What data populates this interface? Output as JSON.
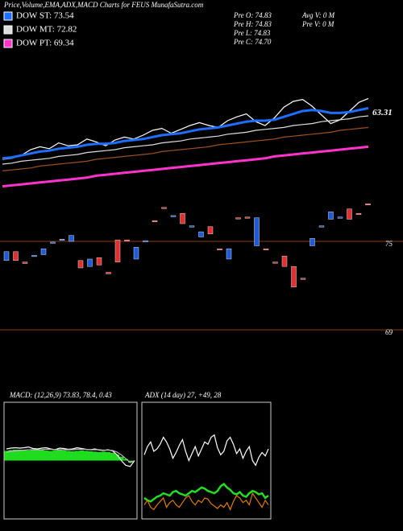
{
  "chart_data": [
    {
      "type": "line",
      "title": "Price,Volume,EMA,ADX,MACD Charts for FEUS MunafaSutra.com",
      "annotations": [
        "Pre O: 74.83",
        "Pre H: 74.83",
        "Pre L: 74.83",
        "Pre C: 74.70",
        "Avg V: 0 M",
        "Pre V: 0 M"
      ],
      "ylim": [
        55,
        70
      ],
      "yticks": [
        63.31
      ],
      "series": [
        {
          "color": "#ffffff",
          "values": [
            58.5,
            58.6,
            58.9,
            59.5,
            59.8,
            59.6,
            60.2,
            59.9,
            60.0,
            60.6,
            60.3,
            59.9,
            60.5,
            60.8,
            60.6,
            61.0,
            61.5,
            61.7,
            61.2,
            61.6,
            62.0,
            62.3,
            62.0,
            61.8,
            62.5,
            62.9,
            63.2,
            62.4,
            62.0,
            62.8,
            63.9,
            64.5,
            64.7,
            64.0,
            63.1,
            62.2,
            62.6,
            63.5,
            64.4,
            64.8
          ]
        },
        {
          "name": "DOW ST: 73.54",
          "color": "#1e6fff",
          "values": [
            58.6,
            58.7,
            58.9,
            59.1,
            59.3,
            59.4,
            59.6,
            59.7,
            59.8,
            60.0,
            60.1,
            60.1,
            60.2,
            60.4,
            60.5,
            60.6,
            60.8,
            61.0,
            61.1,
            61.2,
            61.4,
            61.6,
            61.7,
            61.8,
            62.0,
            62.2,
            62.4,
            62.5,
            62.5,
            62.6,
            62.9,
            63.2,
            63.5,
            63.6,
            63.5,
            63.3,
            63.3,
            63.4,
            63.6,
            63.8
          ]
        },
        {
          "name": "DOW MT: 72.82",
          "color": "#dddddd",
          "values": [
            58.0,
            58.1,
            58.3,
            58.4,
            58.5,
            58.6,
            58.8,
            58.9,
            59.0,
            59.2,
            59.3,
            59.4,
            59.5,
            59.7,
            59.8,
            59.9,
            60.0,
            60.2,
            60.3,
            60.4,
            60.6,
            60.7,
            60.8,
            60.9,
            61.1,
            61.2,
            61.3,
            61.5,
            61.6,
            61.7,
            61.8,
            62.0,
            62.1,
            62.2,
            62.4,
            62.5,
            62.6,
            62.7,
            62.9,
            63.0
          ]
        },
        {
          "color": "#a0521e",
          "values": [
            57.3,
            57.4,
            57.5,
            57.6,
            57.8,
            57.9,
            58.0,
            58.1,
            58.2,
            58.3,
            58.5,
            58.6,
            58.7,
            58.8,
            58.9,
            59.0,
            59.1,
            59.3,
            59.4,
            59.5,
            59.6,
            59.7,
            59.8,
            60.0,
            60.1,
            60.2,
            60.3,
            60.4,
            60.5,
            60.6,
            60.8,
            60.9,
            61.0,
            61.1,
            61.2,
            61.3,
            61.5,
            61.6,
            61.7,
            61.8
          ]
        },
        {
          "name": "DOW PT: 69.34",
          "color": "#ff33cc",
          "values": [
            55.7,
            55.8,
            55.9,
            56.0,
            56.1,
            56.2,
            56.3,
            56.4,
            56.5,
            56.6,
            56.8,
            56.9,
            57.0,
            57.1,
            57.2,
            57.3,
            57.4,
            57.5,
            57.6,
            57.7,
            57.8,
            57.9,
            58.0,
            58.1,
            58.2,
            58.3,
            58.4,
            58.5,
            58.6,
            58.8,
            58.9,
            59.0,
            59.1,
            59.2,
            59.3,
            59.4,
            59.5,
            59.6,
            59.7,
            59.8
          ]
        }
      ]
    },
    {
      "type": "candlestick",
      "ylim": [
        67.5,
        78
      ],
      "yticks": [
        75,
        69
      ],
      "grid": true,
      "up_color": "#1e5bd8",
      "down_color": "#e03030",
      "open": [
        73.7,
        74.3,
        73.6,
        74.0,
        74.1,
        74.9,
        75.1,
        75.0,
        73.7,
        73.3,
        73.9,
        72.9,
        75.1,
        75.1,
        73.8,
        75.0,
        76.4,
        77.3,
        76.7,
        76.9,
        76.0,
        75.3,
        76.0,
        74.5,
        73.8,
        76.6,
        76.65,
        74.7,
        74.5,
        73.6,
        74.0,
        73.3,
        72.5,
        74.7,
        76.0,
        76.5,
        76.6,
        77.2,
        76.9,
        77.55
      ],
      "close": [
        74.3,
        73.7,
        73.5,
        74.05,
        74.5,
        74.95,
        75.15,
        75.4,
        73.2,
        73.8,
        73.4,
        72.8,
        73.6,
        75.05,
        74.6,
        75.05,
        76.35,
        77.25,
        76.75,
        76.2,
        76.05,
        75.65,
        75.5,
        74.45,
        74.5,
        76.55,
        76.6,
        76.6,
        74.45,
        73.55,
        73.3,
        71.9,
        72.45,
        75.2,
        76.05,
        77.0,
        76.65,
        76.5,
        76.85,
        77.5
      ]
    },
    {
      "type": "macd",
      "title": "MACD: (12,26,9) 73.83, 78.4, 0.43",
      "ylim": [
        -1.5,
        1.5
      ],
      "histogram": {
        "color": "#1fdc1f",
        "values": [
          0.25,
          0.27,
          0.28,
          0.28,
          0.27,
          0.26,
          0.27,
          0.28,
          0.27,
          0.26,
          0.25,
          0.26,
          0.27,
          0.26,
          0.25,
          0.24,
          0.25,
          0.26,
          0.25,
          0.24,
          0.23,
          0.22,
          0.23,
          0.22,
          0.2,
          0.16,
          0.1,
          0.04,
          -0.05,
          0.0
        ]
      },
      "series": [
        {
          "color": "#ffffff",
          "values": [
            0.3,
            0.32,
            0.33,
            0.32,
            0.33,
            0.35,
            0.31,
            0.3,
            0.32,
            0.33,
            0.3,
            0.28,
            0.32,
            0.31,
            0.29,
            0.3,
            0.33,
            0.31,
            0.29,
            0.28,
            0.3,
            0.27,
            0.26,
            0.28,
            0.25,
            0.15,
            0.0,
            -0.12,
            -0.15,
            0.0
          ]
        },
        {
          "color": "#bbbbbb",
          "values": [
            0.22,
            0.24,
            0.25,
            0.26,
            0.27,
            0.28,
            0.28,
            0.28,
            0.28,
            0.29,
            0.29,
            0.28,
            0.28,
            0.28,
            0.28,
            0.28,
            0.29,
            0.29,
            0.29,
            0.28,
            0.28,
            0.28,
            0.27,
            0.27,
            0.26,
            0.22,
            0.15,
            0.05,
            -0.05,
            0.0
          ]
        }
      ]
    },
    {
      "type": "line",
      "title": "ADX (14 day) 27, +49, 28",
      "ylim": [
        0,
        100
      ],
      "series": [
        {
          "color": "#ffffff",
          "values": [
            55,
            62,
            66,
            58,
            60,
            64,
            70,
            66,
            60,
            52,
            57,
            63,
            68,
            58,
            50,
            56,
            62,
            54,
            60,
            66,
            64,
            70,
            72,
            61,
            55,
            58,
            67,
            70,
            64,
            56,
            60,
            52,
            58,
            62,
            50,
            46,
            53,
            57,
            54,
            60
          ]
        },
        {
          "color": "#22dd22",
          "values": [
            18,
            16,
            15,
            17,
            19,
            20,
            22,
            21,
            20,
            23,
            24,
            22,
            21,
            20,
            22,
            24,
            23,
            25,
            27,
            26,
            24,
            23,
            22,
            24,
            28,
            30,
            27,
            25,
            22,
            21,
            23,
            20,
            19,
            22,
            24,
            23,
            21,
            22,
            18,
            20
          ]
        },
        {
          "color": "#e07b00",
          "values": [
            12,
            16,
            10,
            8,
            12,
            15,
            18,
            10,
            14,
            16,
            12,
            10,
            14,
            18,
            20,
            15,
            12,
            16,
            14,
            18,
            17,
            13,
            11,
            9,
            12,
            10,
            14,
            8,
            15,
            20,
            18,
            14,
            16,
            12,
            22,
            18,
            14,
            10,
            16,
            12
          ]
        }
      ]
    }
  ]
}
